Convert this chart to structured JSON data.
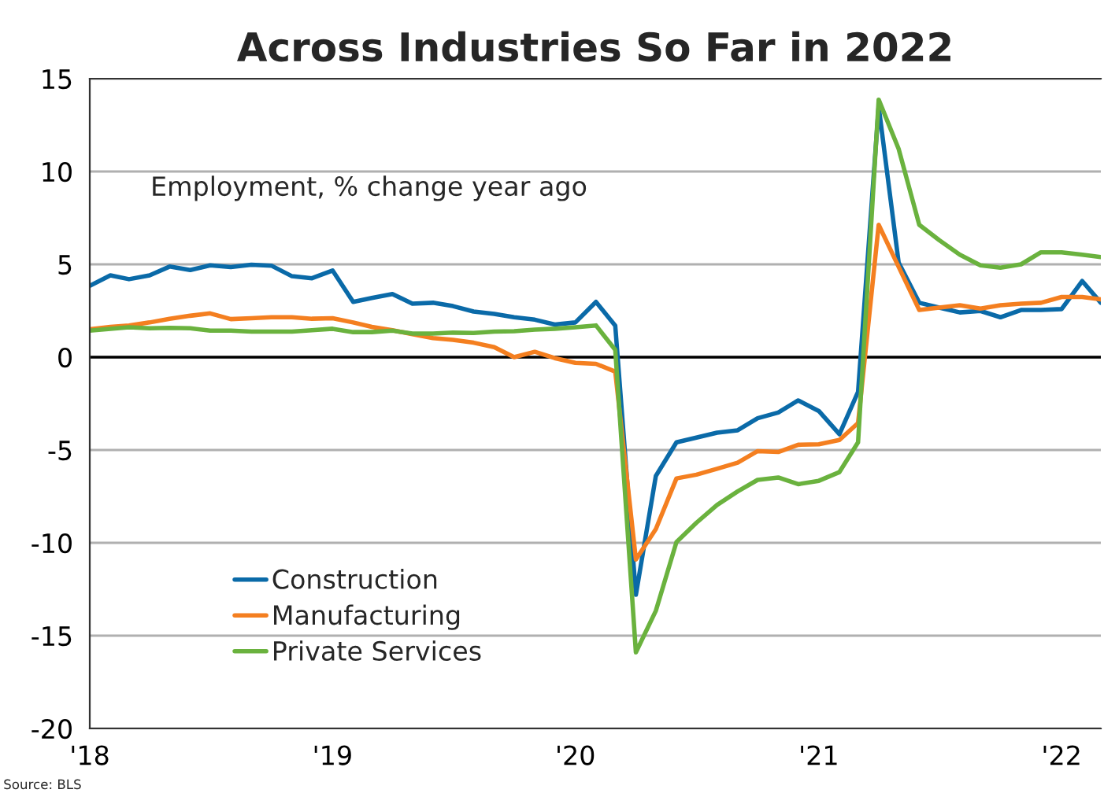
{
  "chart_data": {
    "type": "line",
    "title": "Across Industries So Far in 2022",
    "annotations": [
      "Employment, % change year ago",
      "Source: BLS"
    ],
    "x": [
      "2018-01",
      "2018-02",
      "2018-03",
      "2018-04",
      "2018-05",
      "2018-06",
      "2018-07",
      "2018-08",
      "2018-09",
      "2018-10",
      "2018-11",
      "2018-12",
      "2019-01",
      "2019-02",
      "2019-03",
      "2019-04",
      "2019-05",
      "2019-06",
      "2019-07",
      "2019-08",
      "2019-09",
      "2019-10",
      "2019-11",
      "2019-12",
      "2020-01",
      "2020-02",
      "2020-03",
      "2020-04",
      "2020-05",
      "2020-06",
      "2020-07",
      "2020-08",
      "2020-09",
      "2020-10",
      "2020-11",
      "2020-12",
      "2021-01",
      "2021-02",
      "2021-03",
      "2021-04",
      "2021-05",
      "2021-06",
      "2021-07",
      "2021-08",
      "2021-09",
      "2021-10",
      "2021-11",
      "2021-12",
      "2022-01",
      "2022-02",
      "2022-03"
    ],
    "series": [
      {
        "name": "Construction",
        "color": "#0a6aa8",
        "values": [
          3.84,
          4.41,
          4.2,
          4.41,
          4.88,
          4.69,
          4.95,
          4.85,
          4.98,
          4.93,
          4.36,
          4.25,
          4.67,
          2.98,
          3.19,
          3.4,
          2.88,
          2.93,
          2.75,
          2.46,
          2.33,
          2.15,
          2.02,
          1.76,
          1.87,
          2.98,
          1.69,
          -12.8,
          -6.4,
          -4.59,
          -4.33,
          -4.07,
          -3.94,
          -3.29,
          -2.98,
          -2.33,
          -2.9,
          -4.15,
          -1.87,
          13.5,
          5.1,
          2.93,
          2.67,
          2.41,
          2.49,
          2.15,
          2.54,
          2.54,
          2.59,
          4.1,
          2.93
        ]
      },
      {
        "name": "Manufacturing",
        "color": "#f47f20",
        "values": [
          1.5,
          1.63,
          1.71,
          1.87,
          2.07,
          2.23,
          2.36,
          2.05,
          2.1,
          2.15,
          2.15,
          2.07,
          2.1,
          1.87,
          1.63,
          1.45,
          1.24,
          1.03,
          0.93,
          0.78,
          0.54,
          0.0,
          0.29,
          -0.05,
          -0.31,
          -0.36,
          -0.78,
          -10.9,
          -9.26,
          -6.53,
          -6.33,
          -6.01,
          -5.68,
          -5.06,
          -5.11,
          -4.72,
          -4.69,
          -4.46,
          -3.55,
          7.13,
          4.87,
          2.54,
          2.67,
          2.8,
          2.62,
          2.8,
          2.88,
          2.93,
          3.24,
          3.24,
          3.11
        ]
      },
      {
        "name": "Private Services",
        "color": "#6ab23e",
        "values": [
          1.43,
          1.53,
          1.61,
          1.56,
          1.58,
          1.56,
          1.43,
          1.43,
          1.38,
          1.38,
          1.38,
          1.45,
          1.53,
          1.35,
          1.35,
          1.43,
          1.27,
          1.27,
          1.32,
          1.3,
          1.38,
          1.4,
          1.48,
          1.53,
          1.61,
          1.71,
          0.39,
          -15.9,
          -13.66,
          -9.96,
          -8.92,
          -7.96,
          -7.23,
          -6.61,
          -6.48,
          -6.84,
          -6.66,
          -6.19,
          -4.59,
          13.87,
          11.22,
          7.13,
          6.3,
          5.52,
          4.95,
          4.82,
          5.0,
          5.65,
          5.65,
          5.52,
          5.39
        ]
      }
    ],
    "xlim": [
      "2018-01",
      "2022-03"
    ],
    "xticks": [
      {
        "value": "2018-01",
        "label": "'18"
      },
      {
        "value": "2019-01",
        "label": "'19"
      },
      {
        "value": "2020-01",
        "label": "'20"
      },
      {
        "value": "2021-01",
        "label": "'21"
      },
      {
        "value": "2022-01",
        "label": "'22"
      }
    ],
    "ylim": [
      -20,
      15
    ],
    "yticks": [
      -20,
      -15,
      -10,
      -5,
      0,
      5,
      10,
      15
    ],
    "ref_lines": [
      {
        "axis": "y",
        "value": 0,
        "color": "#000000"
      }
    ],
    "grid": "y",
    "legend": "bottom left",
    "marker": "none",
    "line_style": "solid"
  }
}
